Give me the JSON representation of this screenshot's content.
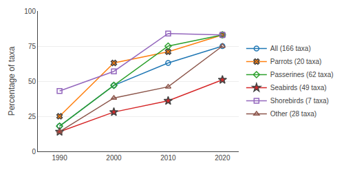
{
  "chart_data": {
    "type": "line",
    "x": [
      1990,
      2000,
      2010,
      2020
    ],
    "series": [
      {
        "name": "All (166 taxa)",
        "marker": "circle-open",
        "values": [
          18,
          47,
          63,
          75
        ]
      },
      {
        "name": "Parrots (20 taxa)",
        "marker": "x",
        "values": [
          25,
          63,
          71,
          83
        ]
      },
      {
        "name": "Passerines (62 taxa)",
        "marker": "diamond-open",
        "values": [
          18,
          47,
          75,
          83
        ]
      },
      {
        "name": "Seabirds (49 taxa)",
        "marker": "star",
        "values": [
          14,
          28,
          36,
          51
        ]
      },
      {
        "name": "Shorebirds (7 taxa)",
        "marker": "square-open",
        "values": [
          43,
          57,
          84,
          83
        ]
      },
      {
        "name": "Other (28 taxa)",
        "marker": "triangle-up-open",
        "values": [
          14,
          38,
          46,
          75
        ]
      }
    ],
    "ylabel": "Percentage of taxa",
    "xlim": [
      1986,
      2023
    ],
    "ylim": [
      0,
      100
    ],
    "xticks": [
      1990,
      2000,
      2010,
      2020
    ],
    "yticks": [
      0,
      25,
      50,
      75,
      100
    ],
    "grid": true,
    "legend": "right"
  }
}
